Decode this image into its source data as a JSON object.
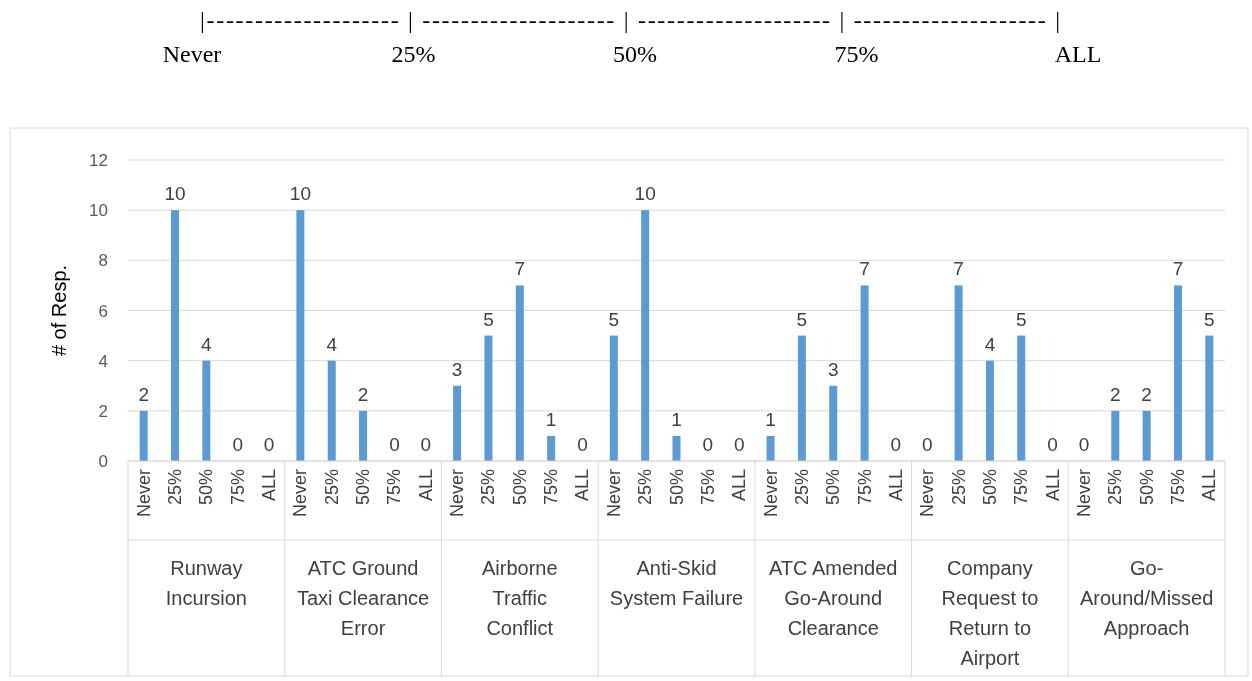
{
  "chart_data": {
    "type": "bar",
    "title": "|-------------------- | -------------------- | -------------------- | -------------------- |",
    "subtitle": "Never 25% 50% 75% ALL",
    "ylabel": "# of Resp.",
    "categories": [
      "Never",
      "25%",
      "50%",
      "75%",
      "ALL",
      "Never",
      "25%",
      "50%",
      "75%",
      "ALL",
      "Never",
      "25%",
      "50%",
      "75%",
      "ALL",
      "Never",
      "25%",
      "50%",
      "75%",
      "ALL",
      "Never",
      "25%",
      "50%",
      "75%",
      "ALL",
      "Never",
      "25%",
      "50%",
      "75%",
      "ALL",
      "Never",
      "25%",
      "50%",
      "75%",
      "ALL"
    ],
    "values": [
      2,
      10,
      4,
      0,
      0,
      10,
      4,
      2,
      0,
      0,
      3,
      5,
      7,
      1,
      0,
      5,
      10,
      1,
      0,
      0,
      1,
      5,
      3,
      7,
      0,
      0,
      7,
      4,
      5,
      0,
      0,
      2,
      2,
      7,
      5
    ],
    "color": "#5b9bd5",
    "annotations": [
      "Runway Incursion",
      "ATC Ground Taxi Clearance Error",
      "Airborne Traffic Conflict",
      "Anti-Skid System Failure",
      "ATC Amended Go-Around Clearance",
      "Company Request to Return to Airport",
      "Go-Around/Missed Approach"
    ],
    "ylim": [
      0,
      12
    ],
    "yticks": [
      0,
      2,
      4,
      6,
      8,
      10,
      12
    ],
    "grid": "y",
    "data_labels": true
  }
}
